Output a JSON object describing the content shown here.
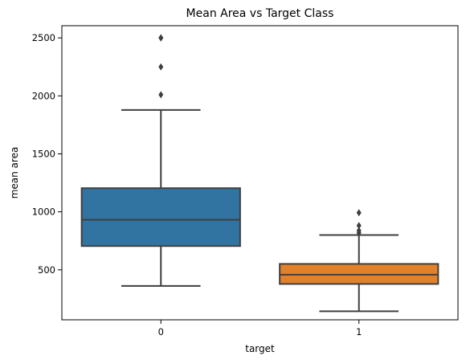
{
  "chart_data": {
    "type": "box",
    "title": "Mean Area vs Target Class",
    "xlabel": "target",
    "ylabel": "mean area",
    "categories": [
      "0",
      "1"
    ],
    "ylim": [
      69,
      2605
    ],
    "yticks": [
      500,
      1000,
      1500,
      2000,
      2500
    ],
    "grid": false,
    "colors": {
      "box_0": "#3274a1",
      "box_1": "#e1812c",
      "lines": "#3f3f3f",
      "axes": "#000000"
    },
    "boxes": [
      {
        "category": "0",
        "whisker_low": 361,
        "q1": 705,
        "median": 932,
        "q3": 1204,
        "whisker_high": 1878,
        "outliers": [
          2010,
          2250,
          2499,
          2501
        ]
      },
      {
        "category": "1",
        "whisker_low": 143,
        "q1": 378,
        "median": 458,
        "q3": 551,
        "whisker_high": 800,
        "outliers": [
          818,
          838,
          881,
          992
        ]
      }
    ]
  }
}
